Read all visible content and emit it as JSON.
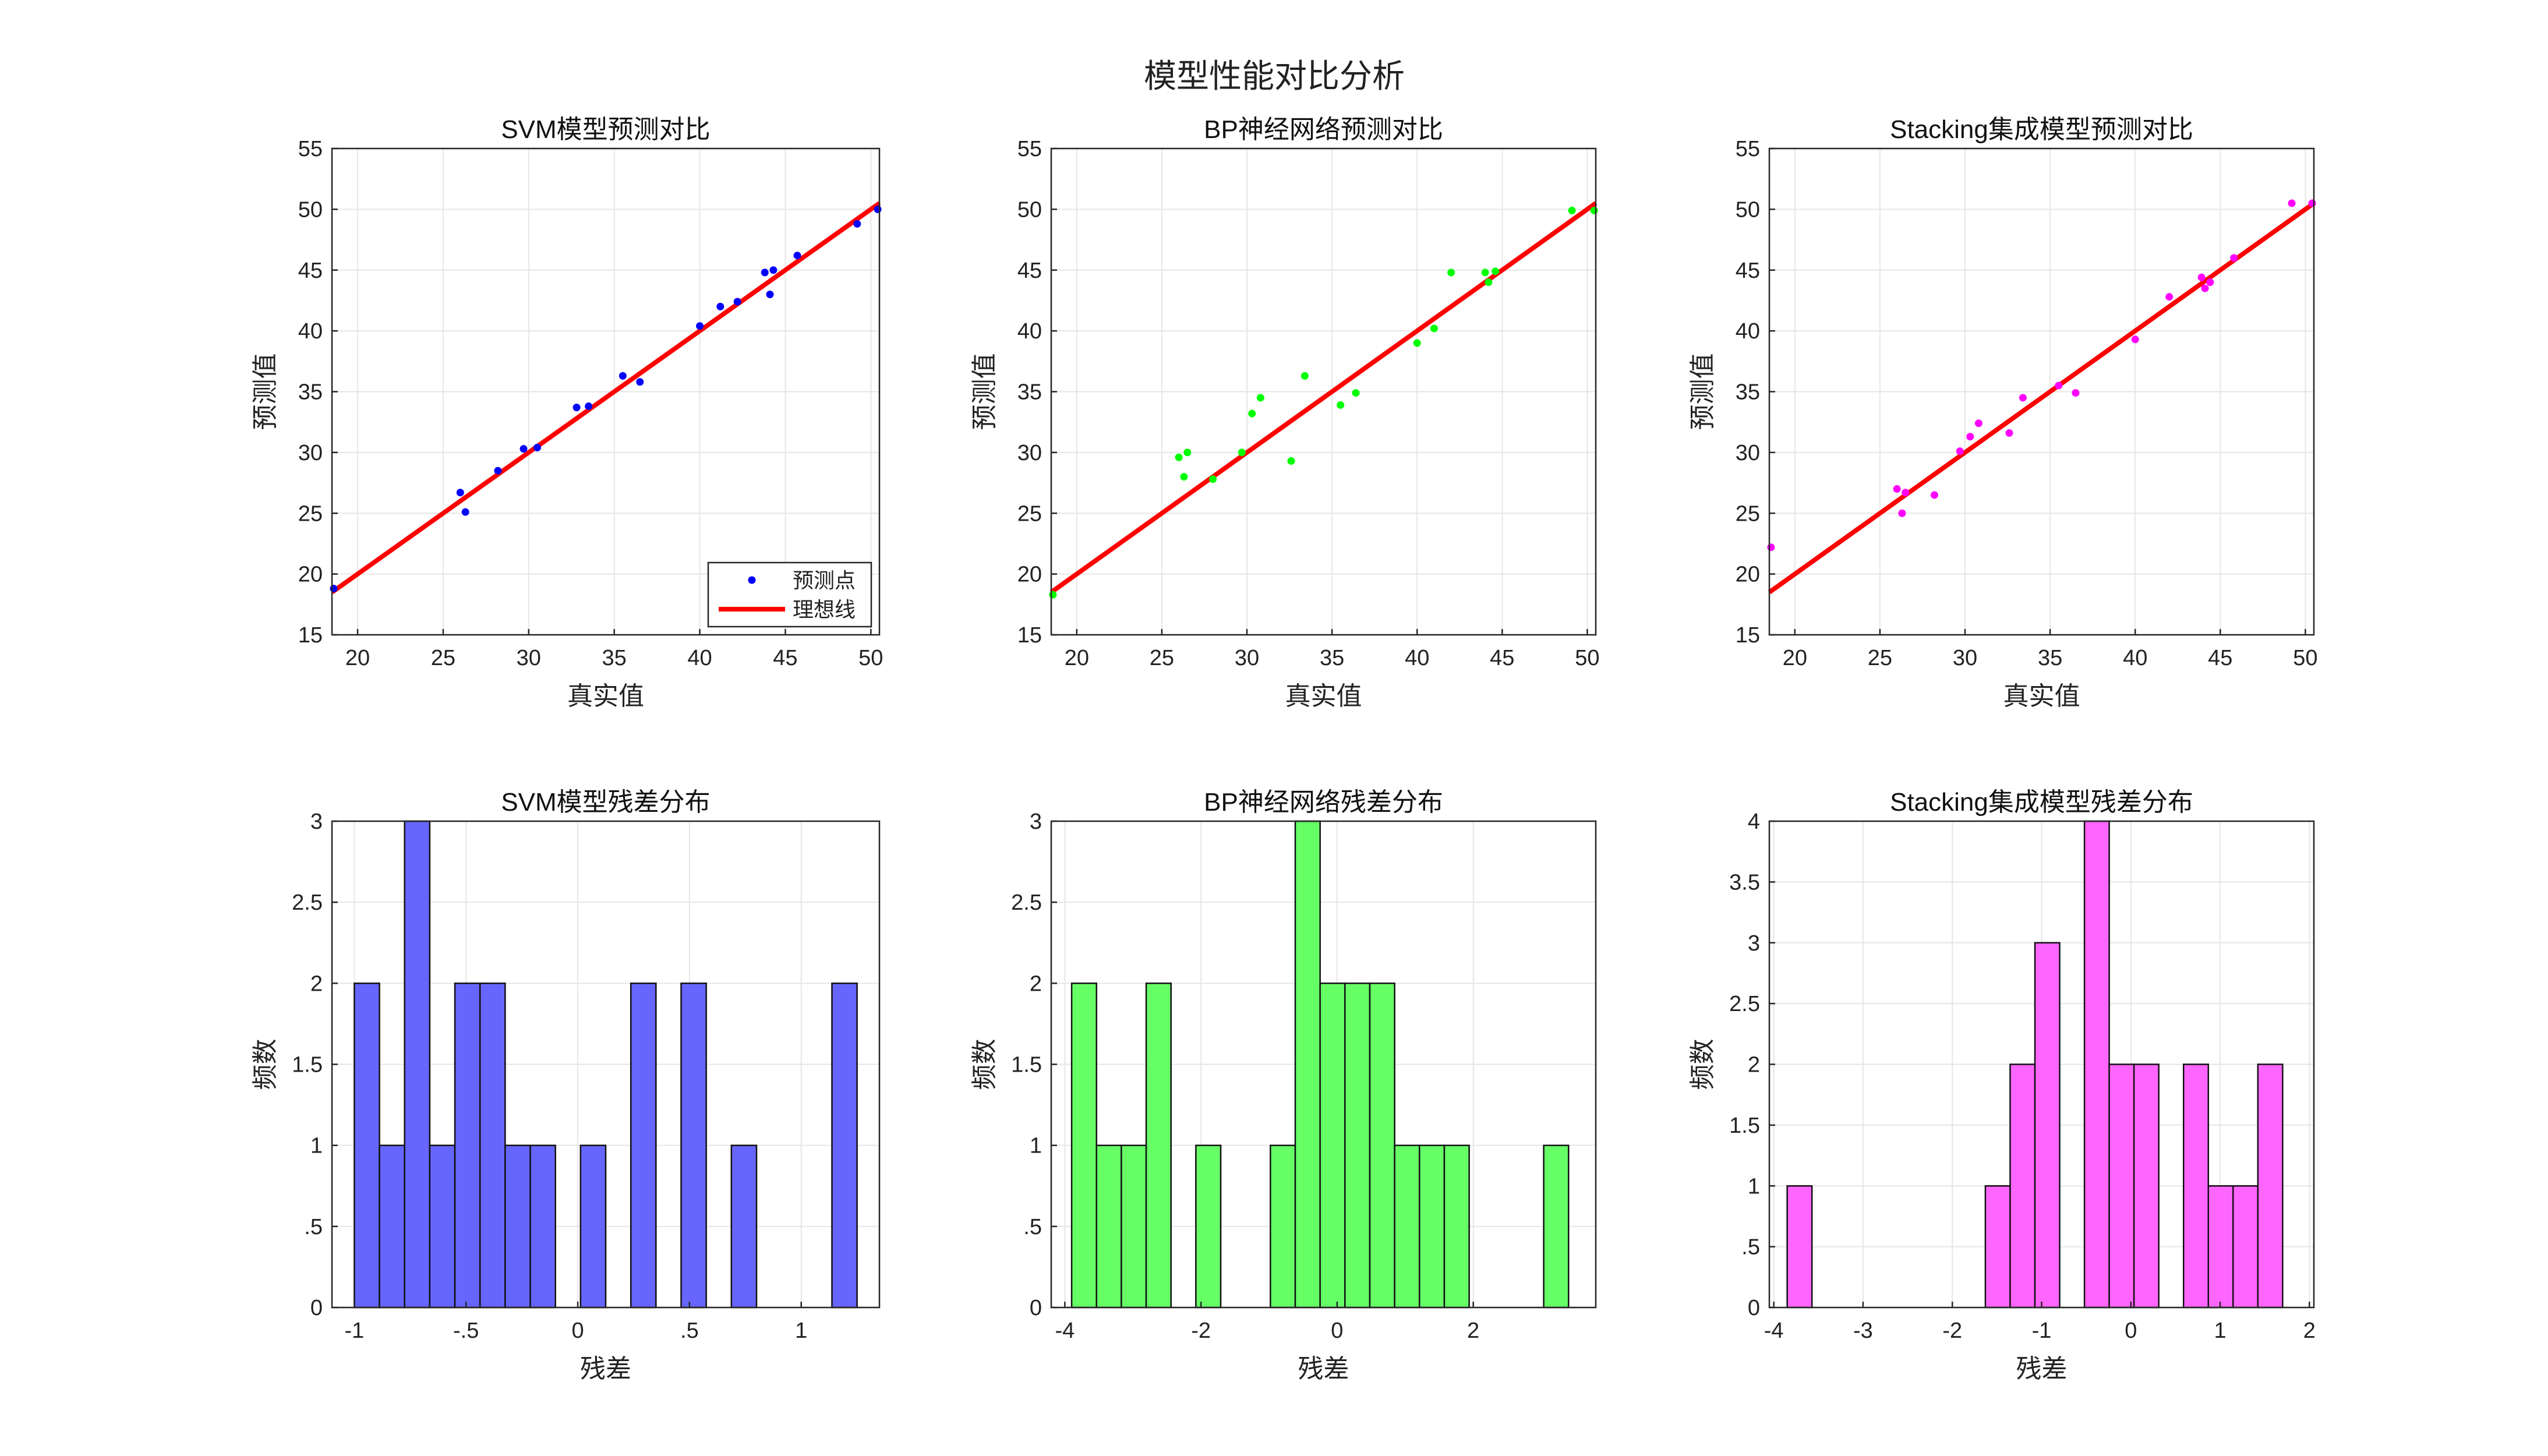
{
  "figure": {
    "title": "模型性能对比分析"
  },
  "chart_data": [
    {
      "type": "scatter",
      "title": "SVM模型预测对比",
      "xlabel": "真实值",
      "ylabel": "预测值",
      "xlim": [
        18.5,
        50.5
      ],
      "ylim": [
        15,
        55
      ],
      "xticks": [
        20,
        25,
        30,
        35,
        40,
        45,
        50
      ],
      "yticks": [
        15,
        20,
        25,
        30,
        35,
        40,
        45,
        50,
        55
      ],
      "grid": true,
      "color": "#0000ff",
      "series": [
        {
          "name": "预测点",
          "kind": "points",
          "x": [
            18.6,
            26.0,
            26.3,
            28.2,
            29.7,
            30.5,
            32.8,
            33.5,
            35.5,
            36.5,
            40.0,
            41.2,
            42.2,
            43.8,
            44.1,
            44.3,
            45.7,
            49.2,
            50.4
          ],
          "y": [
            18.8,
            26.7,
            25.1,
            28.5,
            30.3,
            30.4,
            33.7,
            33.8,
            36.3,
            35.8,
            40.4,
            42.0,
            42.4,
            44.8,
            43.0,
            45.0,
            46.2,
            48.8,
            50.0
          ]
        },
        {
          "name": "理想线",
          "kind": "line",
          "x": [
            18.5,
            50.5
          ],
          "y": [
            18.5,
            50.5
          ],
          "color": "#ff0000"
        }
      ],
      "legend": {
        "position": "bottom-right"
      }
    },
    {
      "type": "scatter",
      "title": "BP神经网络预测对比",
      "xlabel": "真实值",
      "ylabel": "预测值",
      "xlim": [
        18.5,
        50.5
      ],
      "ylim": [
        15,
        55
      ],
      "xticks": [
        20,
        25,
        30,
        35,
        40,
        45,
        50
      ],
      "yticks": [
        15,
        20,
        25,
        30,
        35,
        40,
        45,
        50,
        55
      ],
      "grid": true,
      "color": "#00ff00",
      "series": [
        {
          "kind": "points",
          "x": [
            18.6,
            26.0,
            26.3,
            26.5,
            28.0,
            29.7,
            30.3,
            30.8,
            32.6,
            33.4,
            35.5,
            36.4,
            40.0,
            41.0,
            42.0,
            44.0,
            44.2,
            44.6,
            49.1,
            50.4
          ],
          "y": [
            18.3,
            29.6,
            28.0,
            30.0,
            27.8,
            30.0,
            33.2,
            34.5,
            29.3,
            36.3,
            33.9,
            34.9,
            39.0,
            40.2,
            44.8,
            44.8,
            44.0,
            44.9,
            49.9,
            49.9
          ]
        },
        {
          "kind": "line",
          "x": [
            18.5,
            50.5
          ],
          "y": [
            18.5,
            50.5
          ],
          "color": "#ff0000"
        }
      ]
    },
    {
      "type": "scatter",
      "title": "Stacking集成模型预测对比",
      "xlabel": "真实值",
      "ylabel": "预测值",
      "xlim": [
        18.5,
        50.5
      ],
      "ylim": [
        15,
        55
      ],
      "xticks": [
        20,
        25,
        30,
        35,
        40,
        45,
        50
      ],
      "yticks": [
        15,
        20,
        25,
        30,
        35,
        40,
        45,
        50,
        55
      ],
      "grid": true,
      "color": "#ff00ff",
      "series": [
        {
          "kind": "points",
          "x": [
            18.6,
            26.0,
            26.3,
            26.5,
            28.2,
            29.7,
            30.3,
            30.8,
            32.6,
            33.4,
            35.5,
            36.5,
            40.0,
            42.0,
            43.9,
            44.1,
            44.4,
            45.8,
            49.2,
            50.4
          ],
          "y": [
            22.2,
            27.0,
            25.0,
            26.7,
            26.5,
            30.1,
            31.3,
            32.4,
            31.6,
            34.5,
            35.5,
            34.9,
            39.3,
            42.8,
            44.4,
            43.5,
            44.0,
            46.0,
            50.5,
            50.5
          ]
        },
        {
          "kind": "line",
          "x": [
            18.5,
            50.5
          ],
          "y": [
            18.5,
            50.5
          ],
          "color": "#ff0000"
        }
      ]
    },
    {
      "type": "bar",
      "title": "SVM模型残差分布",
      "xlabel": "残差",
      "ylabel": "频数",
      "xlim": [
        -1.1,
        1.35
      ],
      "ylim": [
        0,
        3
      ],
      "xticks": [
        -1,
        -0.5,
        0,
        0.5,
        1
      ],
      "yticks": [
        0,
        0.5,
        1,
        1.5,
        2,
        2.5,
        3
      ],
      "grid": true,
      "color": "#6666ff",
      "bin_start": -1.0,
      "bin_width": 0.1125,
      "counts": [
        2,
        1,
        3,
        1,
        2,
        2,
        1,
        1,
        0,
        1,
        0,
        2,
        0,
        2,
        0,
        1,
        0,
        0,
        0,
        2
      ]
    },
    {
      "type": "bar",
      "title": "BP神经网络残差分布",
      "xlabel": "残差",
      "ylabel": "频数",
      "xlim": [
        -4.2,
        3.8
      ],
      "ylim": [
        0,
        3
      ],
      "xticks": [
        -4,
        -2,
        0,
        2
      ],
      "yticks": [
        0,
        0.5,
        1,
        1.5,
        2,
        2.5,
        3
      ],
      "grid": true,
      "color": "#66ff66",
      "bin_start": -3.9,
      "bin_width": 0.365,
      "counts": [
        2,
        1,
        1,
        2,
        0,
        1,
        0,
        0,
        1,
        3,
        2,
        2,
        2,
        1,
        1,
        1,
        0,
        0,
        0,
        1
      ]
    },
    {
      "type": "bar",
      "title": "Stacking集成模型残差分布",
      "xlabel": "残差",
      "ylabel": "频数",
      "xlim": [
        -4.05,
        2.05
      ],
      "ylim": [
        0,
        4
      ],
      "xticks": [
        -4,
        -3,
        -2,
        -1,
        0,
        1,
        2
      ],
      "yticks": [
        0,
        0.5,
        1,
        1.5,
        2,
        2.5,
        3,
        3.5,
        4
      ],
      "grid": true,
      "color": "#ff66ff",
      "bin_start": -3.85,
      "bin_width": 0.2775,
      "counts": [
        1,
        0,
        0,
        0,
        0,
        0,
        0,
        0,
        1,
        2,
        3,
        0,
        4,
        2,
        2,
        0,
        2,
        1,
        1,
        2
      ]
    }
  ]
}
